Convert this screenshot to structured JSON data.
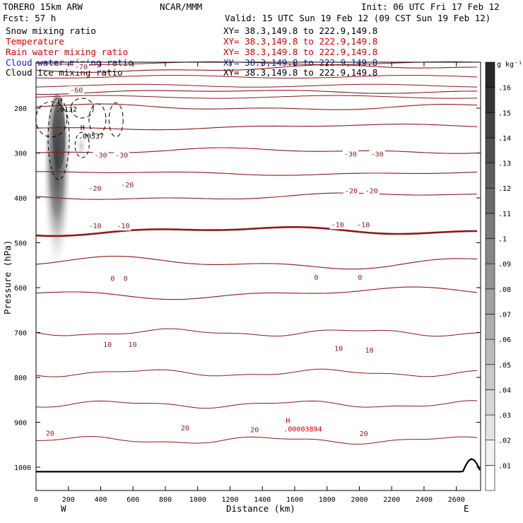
{
  "header": {
    "model": "TORERO  15km ARW",
    "fcst": "Fcst:   57 h",
    "center": "NCAR/MMM",
    "init": "Init: 06 UTC Fri 17 Feb 12",
    "valid": "Valid: 15 UTC Sun 19 Feb 12 (09 CST Sun 19 Feb 12)"
  },
  "legend": [
    {
      "name": "Snow mixing ratio",
      "xy": "XY=  38.3,149.8 to 222.9,149.8",
      "color": "#000000"
    },
    {
      "name": "Temperature",
      "xy": "XY=  38.3,149.8 to 222.9,149.8",
      "color": "#d00000"
    },
    {
      "name": "Rain water mixing ratio",
      "xy": "XY=  38.3,149.8 to 222.9,149.8",
      "color": "#d00000"
    },
    {
      "name": "Cloud water mixing ratio",
      "xy": "XY=  38.3,149.8 to 222.9,149.8",
      "color": "#1020c0"
    },
    {
      "name": "Cloud ice mixing ratio",
      "xy": "XY=  38.3,149.8 to 222.9,149.8",
      "color": "#000000"
    }
  ],
  "colorbar": {
    "unit": "g kg⁻¹",
    "levels": [
      ".01",
      ".02",
      ".03",
      ".04",
      ".05",
      ".06",
      ".07",
      ".08",
      ".09",
      ".1",
      ".11",
      ".12",
      ".13",
      ".14",
      ".15",
      ".16"
    ]
  },
  "chart_data": {
    "type": "contour-cross-section",
    "xlabel": "Distance (km)",
    "ylabel": "Pressure (hPa)",
    "xlim": [
      0,
      2750
    ],
    "ylim": [
      1050,
      100
    ],
    "x_ticks": [
      "0",
      "200",
      "400",
      "600",
      "800",
      "1000",
      "1200",
      "1400",
      "1600",
      "1800",
      "2000",
      "2200",
      "2400",
      "2600"
    ],
    "y_ticks": [
      "200",
      "300",
      "400",
      "500",
      "600",
      "700",
      "800",
      "900",
      "1000"
    ],
    "x_end_labels": {
      "west": "W",
      "east": "E"
    },
    "isotherms": [
      {
        "temp": -70,
        "pressure": 115
      },
      {
        "temp": -60,
        "pressure": 165
      },
      {
        "temp": -50,
        "pressure": 198
      },
      {
        "temp": -40,
        "pressure": 245
      },
      {
        "temp": -30,
        "pressure": 297
      },
      {
        "temp": -20,
        "pressure": 345
      },
      {
        "temp": -10,
        "pressure": 400
      },
      {
        "temp": 0,
        "pressure": 475
      },
      {
        "temp": 10,
        "pressure": 545
      },
      {
        "temp": 20,
        "pressure": 616
      }
    ],
    "temperature_labels": [
      {
        "text": "-70",
        "x": 280,
        "p": 113
      },
      {
        "text": "-60",
        "x": 250,
        "p": 165
      },
      {
        "text": "-30",
        "x": 400,
        "p": 310
      },
      {
        "text": "-30",
        "x": 530,
        "p": 310
      },
      {
        "text": "-30",
        "x": 1945,
        "p": 308
      },
      {
        "text": "-30",
        "x": 2110,
        "p": 308
      },
      {
        "text": "-20",
        "x": 365,
        "p": 384
      },
      {
        "text": "-20",
        "x": 565,
        "p": 376
      },
      {
        "text": "-20",
        "x": 1950,
        "p": 390
      },
      {
        "text": "-20",
        "x": 2075,
        "p": 390
      },
      {
        "text": "-10",
        "x": 365,
        "p": 468
      },
      {
        "text": "-10",
        "x": 540,
        "p": 468
      },
      {
        "text": "-10",
        "x": 1865,
        "p": 465
      },
      {
        "text": "-10",
        "x": 2025,
        "p": 465
      },
      {
        "text": "0",
        "x": 500,
        "p": 585
      },
      {
        "text": "0",
        "x": 580,
        "p": 585
      },
      {
        "text": "0",
        "x": 1760,
        "p": 583
      },
      {
        "text": "0",
        "x": 2030,
        "p": 583
      },
      {
        "text": "10",
        "x": 455,
        "p": 732
      },
      {
        "text": "10",
        "x": 610,
        "p": 732
      },
      {
        "text": "10",
        "x": 1885,
        "p": 741
      },
      {
        "text": "10",
        "x": 2075,
        "p": 745
      },
      {
        "text": "20",
        "x": 100,
        "p": 930
      },
      {
        "text": "20",
        "x": 935,
        "p": 918
      },
      {
        "text": "20",
        "x": 1365,
        "p": 922
      },
      {
        "text": "20",
        "x": 2040,
        "p": 931
      }
    ],
    "maxima": [
      {
        "label": "H",
        "value": ".0132",
        "x": 135,
        "p": 192
      },
      {
        "label": "H",
        "value": ".00537",
        "x": 275,
        "p": 252
      },
      {
        "label": "H",
        "value": ".00003894",
        "x": 1545,
        "p": 905
      }
    ]
  }
}
